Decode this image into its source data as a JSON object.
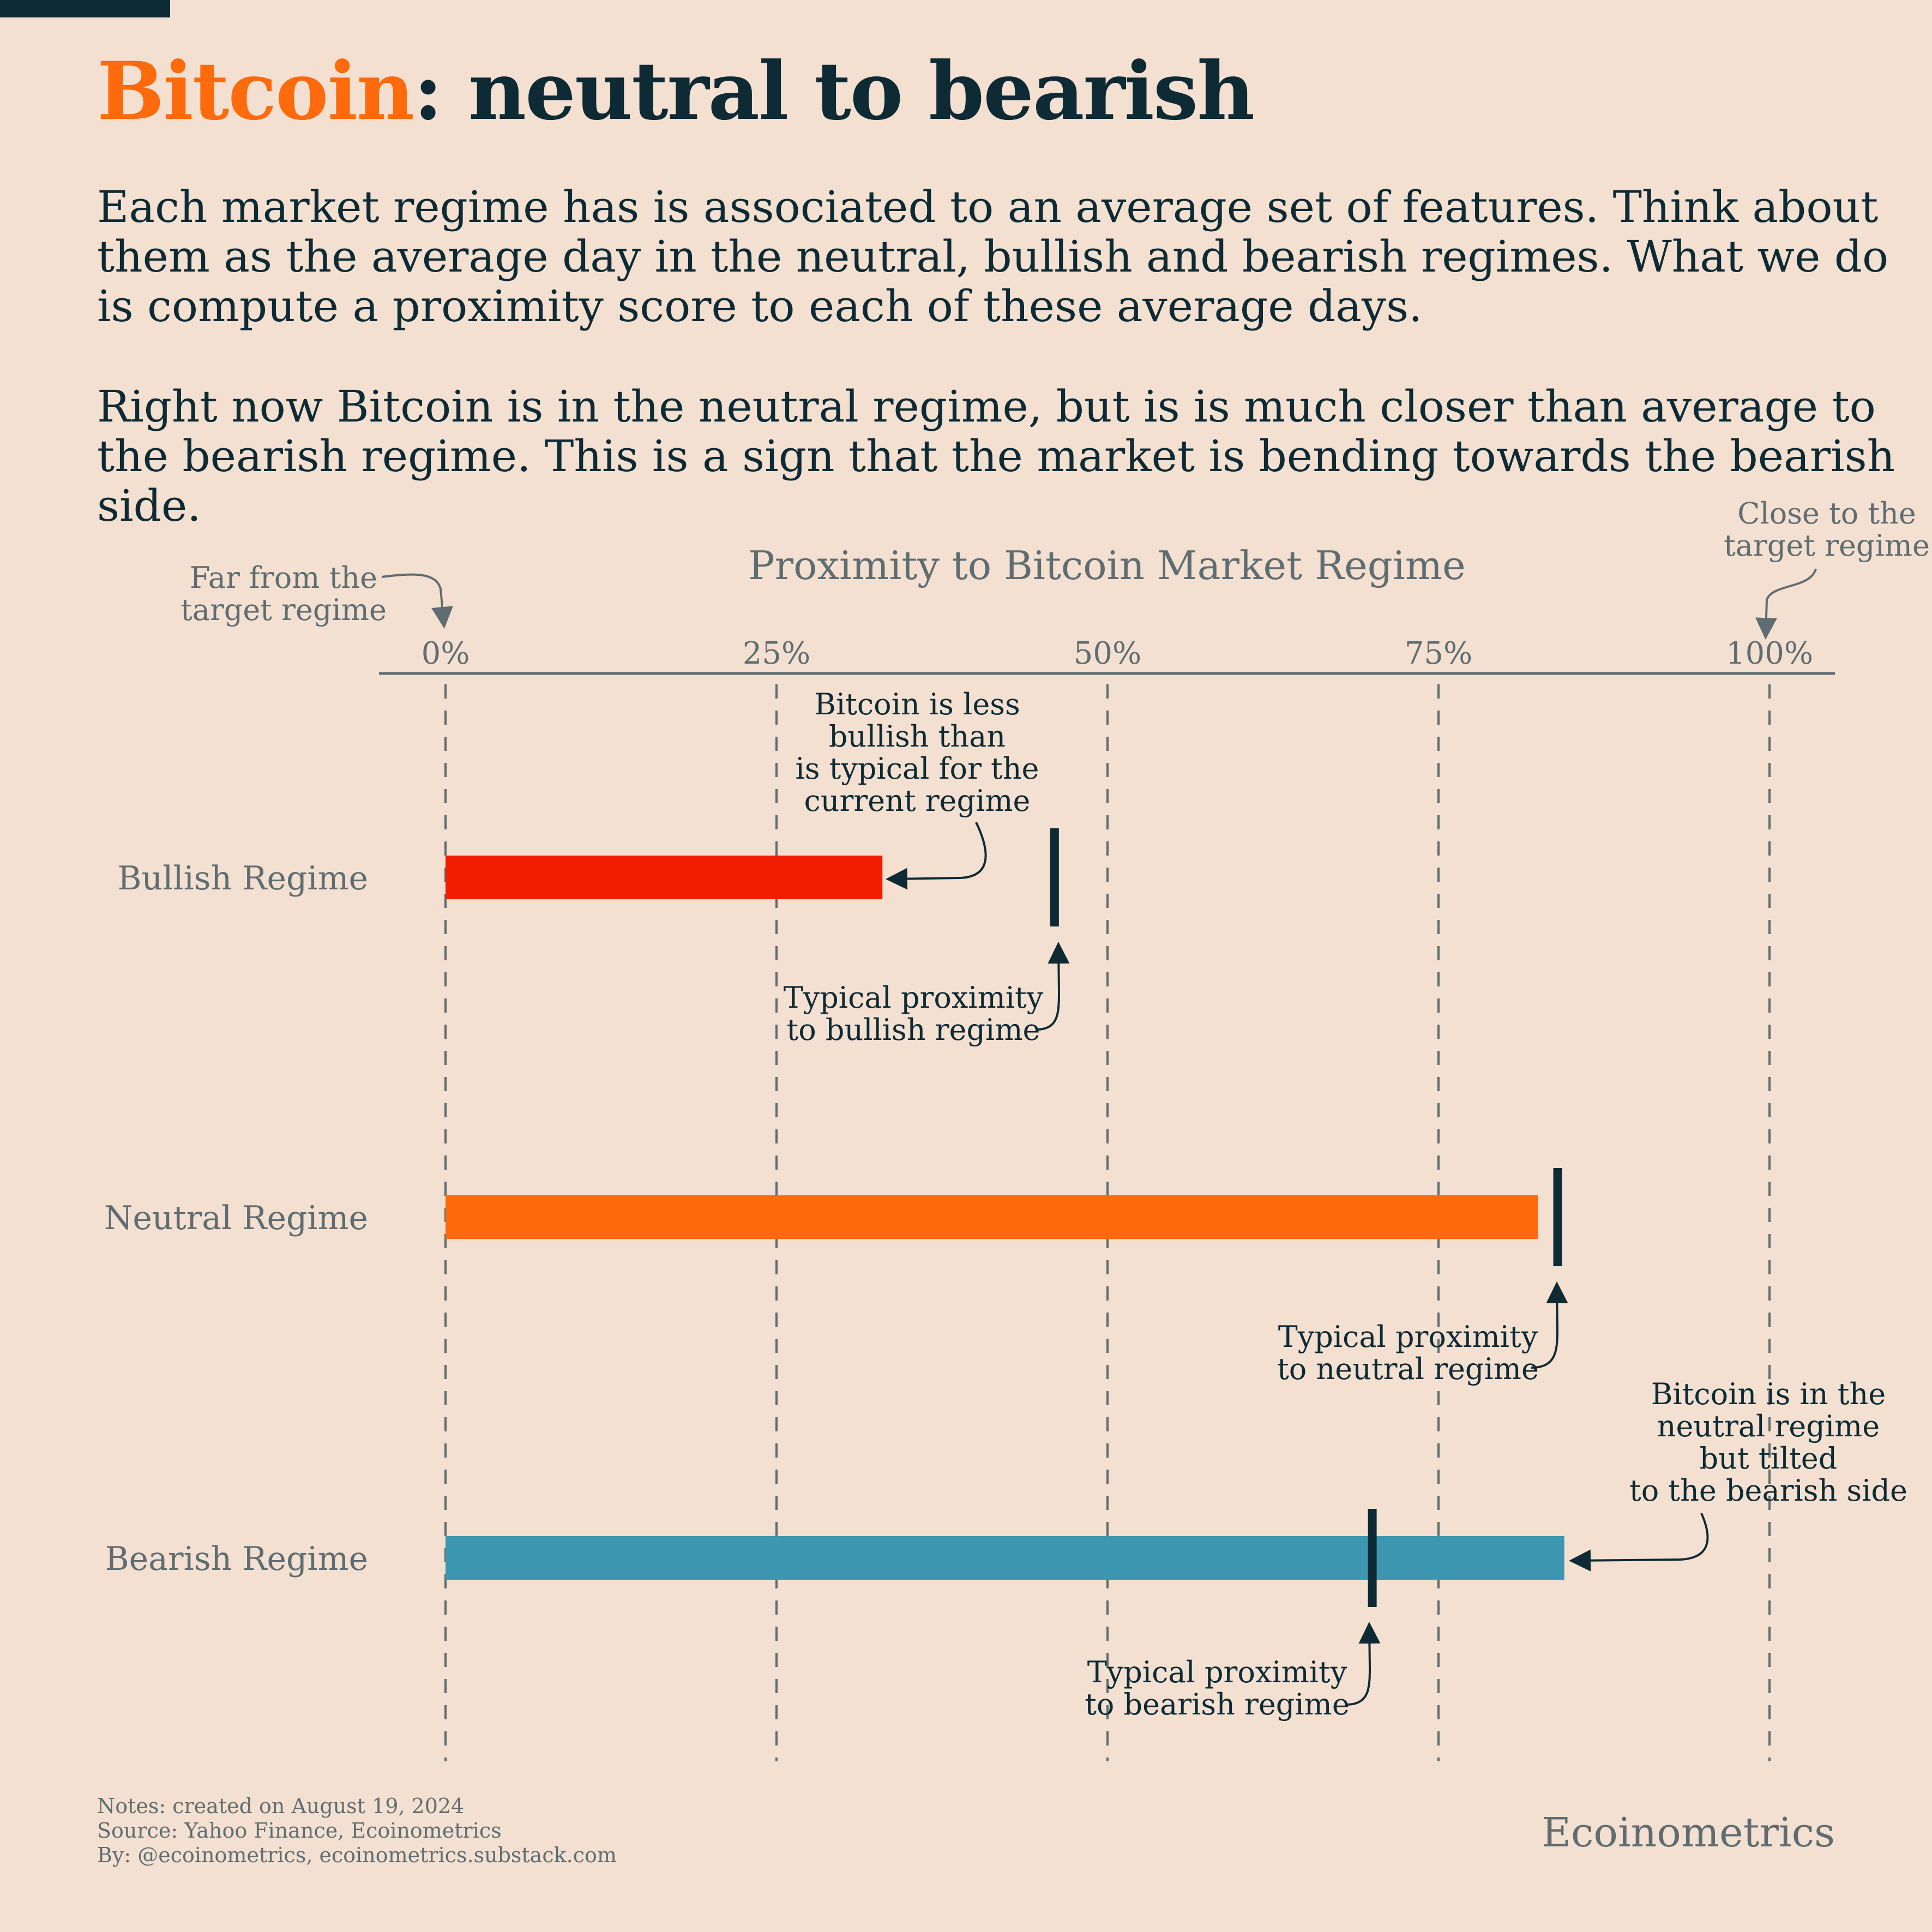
{
  "header": {
    "title_accent": "Bitcoin",
    "title_rest": ": neutral to bearish",
    "paragraph_1": "Each market regime has is associated to an average set of features. Think about them as the average day in the neutral, bullish and bearish regimes. What we do is compute a proximity score to each of these average days.",
    "paragraph_2": "Right now Bitcoin is in the neutral regime, but is is much closer than average to the bearish regime. This is a sign that the market is bending towards the bearish side."
  },
  "chart_data": {
    "type": "bar",
    "orientation": "horizontal",
    "title": "Proximity to Bitcoin Market Regime",
    "xlim": [
      0,
      100
    ],
    "x_ticks": [
      {
        "value": 0,
        "label": "0%"
      },
      {
        "value": 25,
        "label": "25%"
      },
      {
        "value": 50,
        "label": "50%"
      },
      {
        "value": 75,
        "label": "75%"
      },
      {
        "value": 100,
        "label": "100%"
      }
    ],
    "grid": "vertical dashed",
    "categories": [
      "Bullish Regime",
      "Neutral Regime",
      "Bearish Regime"
    ],
    "values": [
      33,
      82.5,
      84.5
    ],
    "typical_values": [
      46,
      84,
      70
    ],
    "colors": {
      "Bullish Regime": "#f21d00",
      "Neutral Regime": "#ff6a0d",
      "Bearish Regime": "#3d97b1",
      "marker": "#0d2a35",
      "axis": "#5f6d72",
      "text": "#0d2a35",
      "muted": "#5f6d72"
    },
    "annotations": {
      "axis_left": [
        "Far from the",
        "target regime"
      ],
      "axis_right": [
        "Close to the",
        "target regime"
      ],
      "bullish_bar": [
        "Bitcoin is less",
        "bullish than",
        "is typical for the",
        "current regime"
      ],
      "bullish_typical": [
        "Typical proximity",
        "to bullish regime"
      ],
      "neutral_typical": [
        "Typical proximity",
        "to neutral regime"
      ],
      "bearish_bar": [
        "Bitcoin is in the",
        "neutral regime",
        "but tilted",
        "to the bearish side"
      ],
      "bearish_typical": [
        "Typical proximity",
        "to bearish regime"
      ]
    }
  },
  "footer": {
    "notes": "Notes: created on August 19, 2024",
    "source": "Source: Yahoo Finance, Ecoinometrics",
    "by": "By: @ecoinometrics, ecoinometrics.substack.com",
    "brand": "Ecoinometrics"
  }
}
